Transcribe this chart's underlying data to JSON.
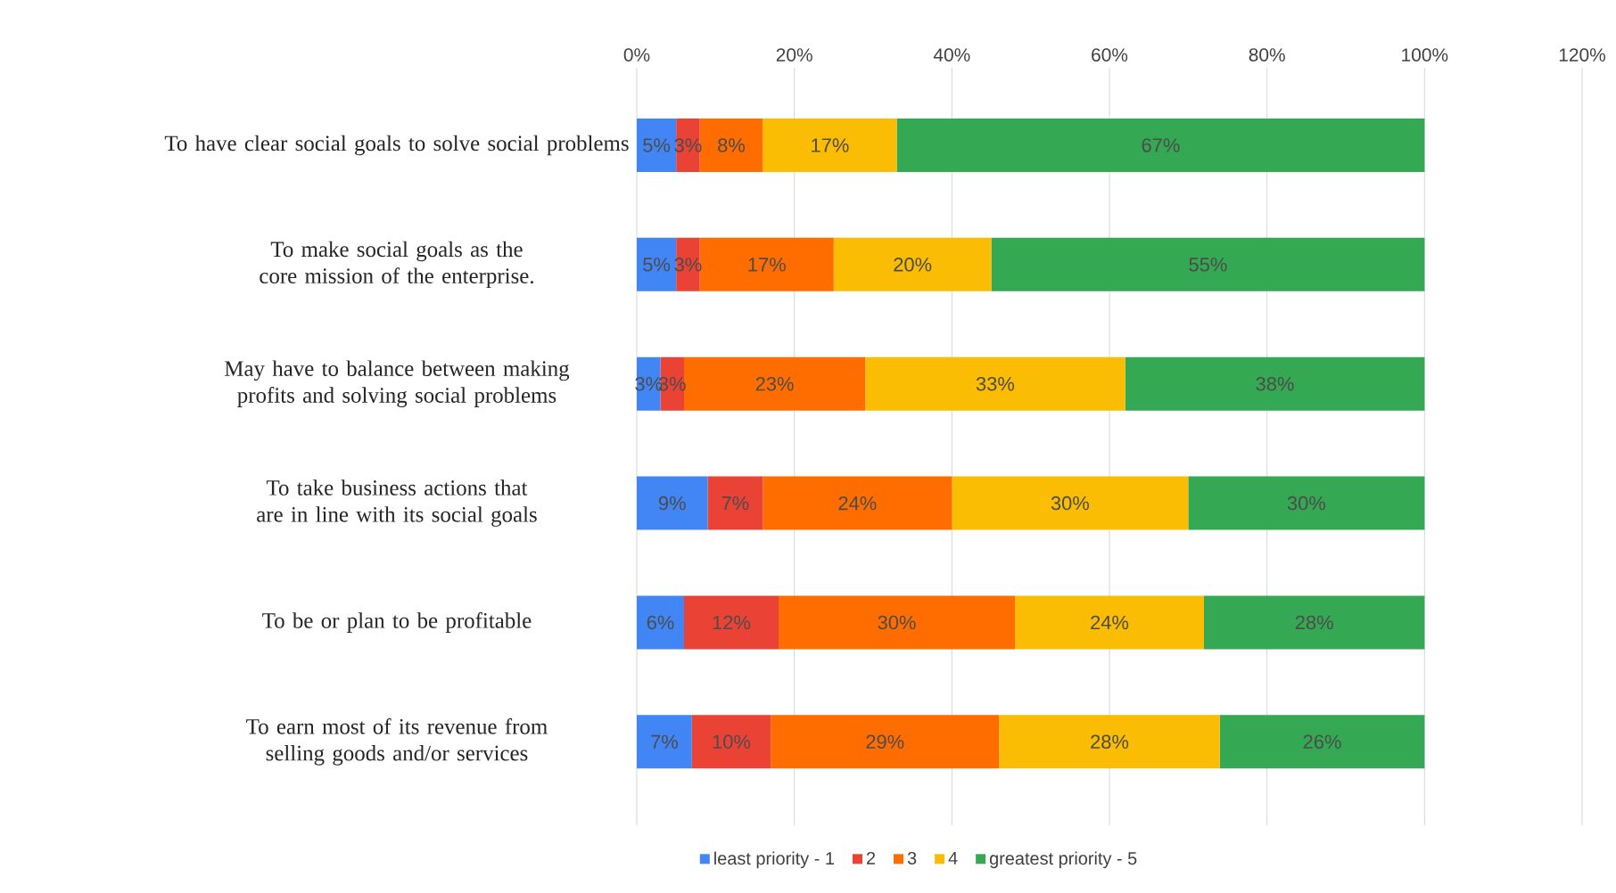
{
  "chart_data": {
    "type": "bar",
    "orientation": "horizontal",
    "stacked": true,
    "categories": [
      "To have clear social goals to solve social problems",
      "To make social goals as the core mission of the enterprise.",
      "May have to balance between making profits and solving social problems",
      "To take business actions that are in line with its social goals",
      "To be or plan to be profitable",
      "To earn most of its revenue from selling goods and/or services"
    ],
    "series": [
      {
        "name": "least priority - 1",
        "color": "#4285f4",
        "values": [
          5,
          5,
          3,
          9,
          6,
          7
        ],
        "value_labels": [
          "5%",
          "5%",
          "3%",
          "9%",
          "6%",
          "7%"
        ]
      },
      {
        "name": "2",
        "color": "#ea4335",
        "values": [
          3,
          3,
          3,
          7,
          12,
          10
        ],
        "value_labels": [
          "3%",
          "3%",
          "3%",
          "7%",
          "12%",
          "10%"
        ]
      },
      {
        "name": "3",
        "color": "#ff6d01",
        "values": [
          8,
          17,
          23,
          24,
          30,
          29
        ],
        "value_labels": [
          "8%",
          "17%",
          "23%",
          "24%",
          "30%",
          "29%"
        ]
      },
      {
        "name": "4",
        "color": "#fbbc04",
        "values": [
          17,
          20,
          33,
          30,
          24,
          28
        ],
        "value_labels": [
          "17%",
          "20%",
          "33%",
          "30%",
          "24%",
          "28%"
        ]
      },
      {
        "name": "greatest priority - 5",
        "color": "#34a853",
        "values": [
          67,
          55,
          38,
          30,
          28,
          26
        ],
        "value_labels": [
          "67%",
          "55%",
          "38%",
          "30%",
          "28%",
          "26%"
        ]
      }
    ],
    "xlim": [
      0,
      120
    ],
    "xticks": [
      {
        "value": 0,
        "label": "0%"
      },
      {
        "value": 20,
        "label": "20%"
      },
      {
        "value": 40,
        "label": "40%"
      },
      {
        "value": 60,
        "label": "60%"
      },
      {
        "value": 80,
        "label": "80%"
      },
      {
        "value": 100,
        "label": "100%"
      },
      {
        "value": 120,
        "label": "120%"
      }
    ],
    "grid": "x",
    "legend": "bottom"
  }
}
